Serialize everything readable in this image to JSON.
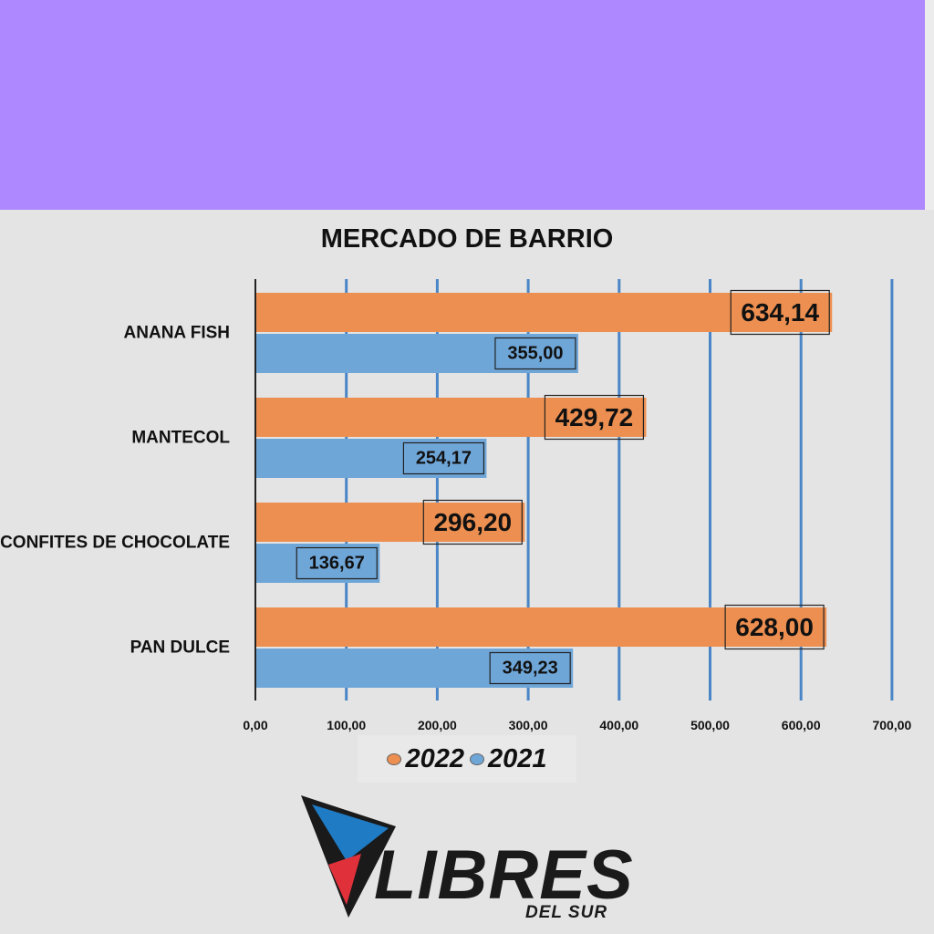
{
  "colors": {
    "banner": "#ad88fe",
    "series_2022": "#ec8f51",
    "series_2021": "#6fa6d8",
    "gridline": "#4a86c7"
  },
  "chart_data": {
    "type": "bar",
    "orientation": "horizontal",
    "title": "MERCADO DE BARRIO",
    "categories": [
      "ANANA FISH",
      "MANTECOL",
      "CONFITES DE CHOCOLATE",
      "PAN DULCE"
    ],
    "series": [
      {
        "name": "2022",
        "color": "#ec8f51",
        "values": [
          634.14,
          429.72,
          296.2,
          628.0
        ],
        "labels": [
          "634,14",
          "429,72",
          "296,20",
          "628,00"
        ]
      },
      {
        "name": "2021",
        "color": "#6fa6d8",
        "values": [
          355.0,
          254.17,
          136.67,
          349.23
        ],
        "labels": [
          "355,00",
          "254,17",
          "136,67",
          "349,23"
        ]
      }
    ],
    "xlim": [
      0,
      700
    ],
    "xticks": [
      0,
      100,
      200,
      300,
      400,
      500,
      600,
      700
    ],
    "xtick_labels": [
      "0,00",
      "100,00",
      "200,00",
      "300,00",
      "400,00",
      "500,00",
      "600,00",
      "700,00"
    ],
    "grid": true,
    "legend_position": "bottom"
  },
  "legend": {
    "items": [
      "2022",
      "2021"
    ]
  },
  "logo": {
    "wordmark": "LIBRES",
    "sub": "DEL SUR",
    "icon": "flag-triangle-icon"
  }
}
